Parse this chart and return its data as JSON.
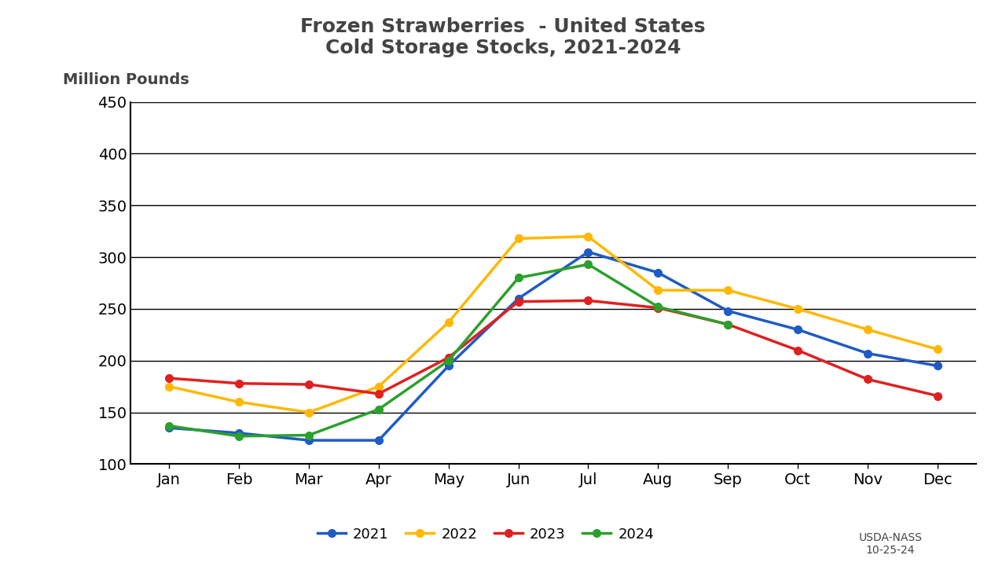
{
  "title_line1": "Frozen Strawberries  - United States",
  "title_line2": "Cold Storage Stocks, 2021-2024",
  "ylabel": "Million Pounds",
  "months": [
    "Jan",
    "Feb",
    "Mar",
    "Apr",
    "May",
    "Jun",
    "Jul",
    "Aug",
    "Sep",
    "Oct",
    "Nov",
    "Dec"
  ],
  "series": {
    "2021": {
      "values": [
        135,
        130,
        123,
        123,
        195,
        260,
        305,
        285,
        248,
        230,
        207,
        195
      ],
      "color": "#1F5BC4",
      "marker": "o"
    },
    "2022": {
      "values": [
        175,
        160,
        150,
        175,
        237,
        318,
        320,
        268,
        268,
        250,
        230,
        211
      ],
      "color": "#FFB800",
      "marker": "o"
    },
    "2023": {
      "values": [
        183,
        178,
        177,
        168,
        203,
        257,
        258,
        251,
        235,
        210,
        182,
        166
      ],
      "color": "#E02020",
      "marker": "o"
    },
    "2024": {
      "values": [
        137,
        127,
        128,
        153,
        200,
        280,
        293,
        252,
        235,
        null,
        null,
        null
      ],
      "color": "#2CA02C",
      "marker": "o"
    }
  },
  "ylim": [
    100,
    450
  ],
  "yticks": [
    100,
    150,
    200,
    250,
    300,
    350,
    400,
    450
  ],
  "background_color": "#ffffff",
  "grid_color": "#000000",
  "source_text": "USDA-NASS\n10-25-24",
  "legend_order": [
    "2021",
    "2022",
    "2023",
    "2024"
  ],
  "title_fontsize": 18,
  "tick_fontsize": 14,
  "legend_fontsize": 13
}
